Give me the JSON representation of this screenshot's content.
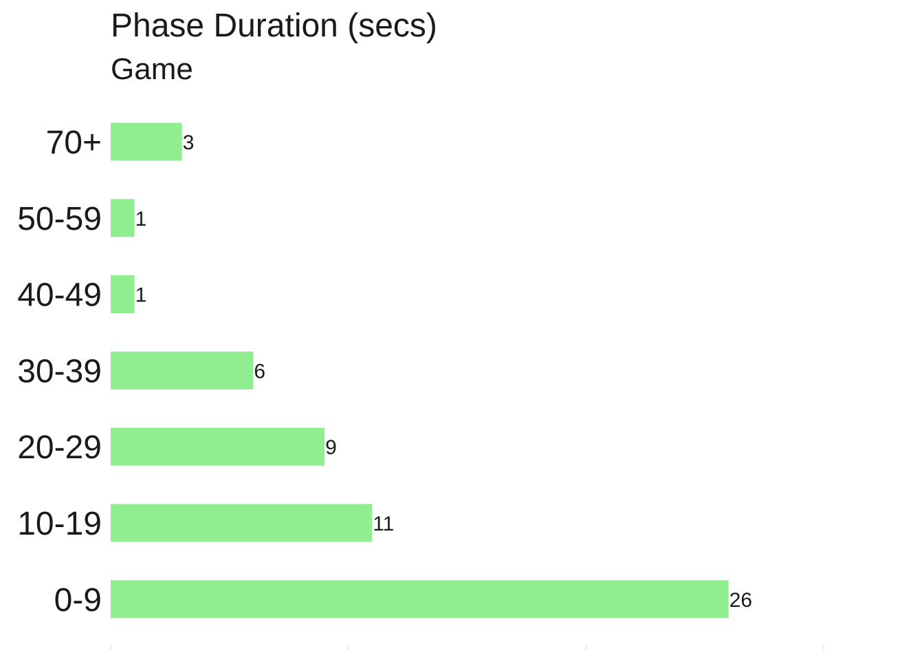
{
  "chart_data": {
    "type": "bar",
    "orientation": "horizontal",
    "title": "Phase Duration (secs)",
    "subtitle": "Game",
    "xlabel": "",
    "ylabel": "",
    "categories": [
      "70+",
      "50-59",
      "40-49",
      "30-39",
      "20-29",
      "10-19",
      "0-9"
    ],
    "values": [
      3,
      1,
      1,
      6,
      9,
      11,
      26
    ],
    "data_labels": [
      "3",
      "1",
      "1",
      "6",
      "9",
      "11",
      "26"
    ],
    "xlim": [
      0,
      30
    ],
    "x_ticks": [
      0,
      10,
      20,
      30
    ],
    "grid": false,
    "legend": "none",
    "bar_color": "#90EE90",
    "text_color": "#1a1a1a"
  }
}
